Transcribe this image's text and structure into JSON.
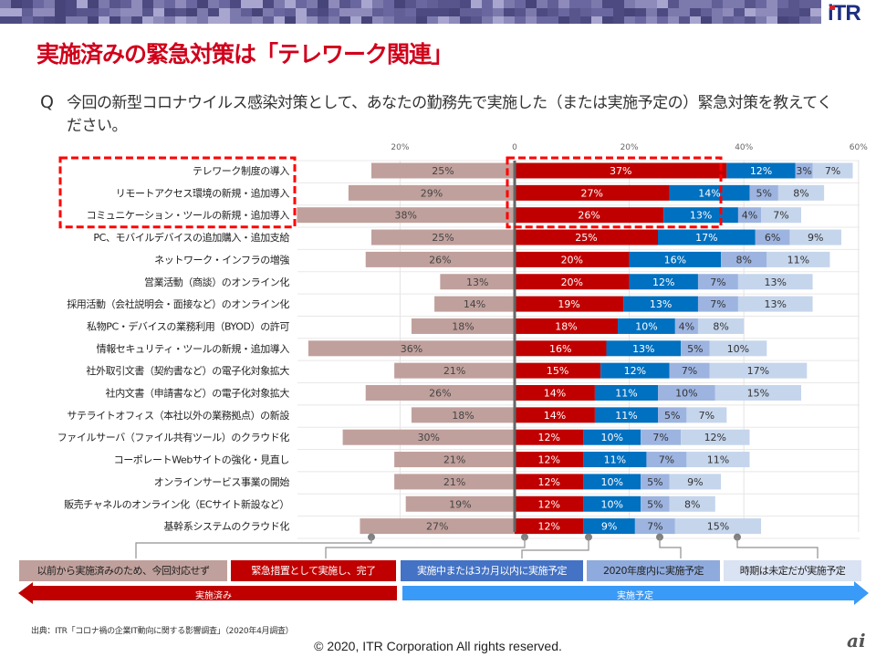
{
  "header": {
    "logo": "iTR",
    "title": "実施済みの緊急対策は「テレワーク関連」"
  },
  "question": {
    "mark": "Q",
    "text": "今回の新型コロナウイルス感染対策として、あなたの勤務先で実施した（または実施予定の）緊急対策を教えてください。"
  },
  "colors": {
    "already_done": "#c0a09c",
    "emergency_done": "#c00000",
    "in_progress_3m": "#0070c0",
    "within_2020": "#9db4e0",
    "undecided": "#c5d5ec",
    "highlight_box": "#ff0000",
    "arrow_done": "#c00000",
    "arrow_planned": "#3a9af7",
    "title_red": "#d0001b"
  },
  "chart_data": {
    "type": "bar",
    "orientation": "horizontal-diverging",
    "title": "実施済みの緊急対策は「テレワーク関連」",
    "x_ticks_left": [
      "20%"
    ],
    "x_ticks_right": [
      "0",
      "20%",
      "40%",
      "60%"
    ],
    "xlim": [
      -40,
      60
    ],
    "grid": true,
    "legend_placement": "bottom",
    "categories": [
      "テレワーク制度の導入",
      "リモートアクセス環境の新規・追加導入",
      "コミュニケーション・ツールの新規・追加導入",
      "PC、モバイルデバイスの追加購入・追加支給",
      "ネットワーク・インフラの増強",
      "営業活動（商談）のオンライン化",
      "採用活動（会社説明会・面接など）のオンライン化",
      "私物PC・デバイスの業務利用（BYOD）の許可",
      "情報セキュリティ・ツールの新規・追加導入",
      "社外取引文書（契約書など）の電子化対象拡大",
      "社内文書（申請書など）の電子化対象拡大",
      "サテライトオフィス（本社以外の業務拠点）の新設",
      "ファイルサーバ（ファイル共有ツール）のクラウド化",
      "コーポレートWebサイトの強化・見直し",
      "オンラインサービス事業の開始",
      "販売チャネルのオンライン化（ECサイト新設など）",
      "基幹系システムのクラウド化"
    ],
    "series": [
      {
        "name": "以前から実施済みのため、今回対応せず",
        "side": "left",
        "values": [
          25,
          29,
          38,
          25,
          26,
          13,
          14,
          18,
          36,
          21,
          26,
          18,
          30,
          21,
          21,
          19,
          27
        ]
      },
      {
        "name": "緊急措置として実施し、完了",
        "side": "right",
        "values": [
          37,
          27,
          26,
          25,
          20,
          20,
          19,
          18,
          16,
          15,
          14,
          14,
          12,
          12,
          12,
          12,
          12
        ]
      },
      {
        "name": "実施中または3カ月以内に実施予定",
        "side": "right",
        "values": [
          12,
          14,
          13,
          17,
          16,
          12,
          13,
          10,
          13,
          12,
          11,
          11,
          10,
          11,
          10,
          10,
          9
        ]
      },
      {
        "name": "2020年度内に実施予定",
        "side": "right",
        "values": [
          3,
          5,
          4,
          6,
          8,
          7,
          7,
          4,
          5,
          7,
          10,
          5,
          7,
          7,
          5,
          5,
          7
        ]
      },
      {
        "name": "時期は未定だが実施予定",
        "side": "right",
        "values": [
          7,
          8,
          7,
          9,
          11,
          13,
          13,
          8,
          10,
          17,
          15,
          7,
          12,
          11,
          9,
          8,
          15
        ]
      }
    ],
    "highlighted_categories": [
      0,
      1,
      2
    ],
    "group_arrows": [
      {
        "label": "実施済み",
        "direction": "left",
        "covers": [
          0,
          1
        ]
      },
      {
        "label": "実施予定",
        "direction": "right",
        "covers": [
          2,
          3,
          4
        ]
      }
    ]
  },
  "legend": [
    "以前から実施済みのため、今回対応せず",
    "緊急措置として実施し、完了",
    "実施中または3カ月以内に実施予定",
    "2020年度内に実施予定",
    "時期は未定だが実施予定"
  ],
  "arrows": {
    "done": "実施済み",
    "planned": "実施予定"
  },
  "footer": {
    "source": "出典：ITR「コロナ禍の企業IT動向に関する影響調査」（2020年4月調査）",
    "copyright": "© 2020, ITR Corporation  All rights reserved.",
    "partner_logo": "ai"
  }
}
